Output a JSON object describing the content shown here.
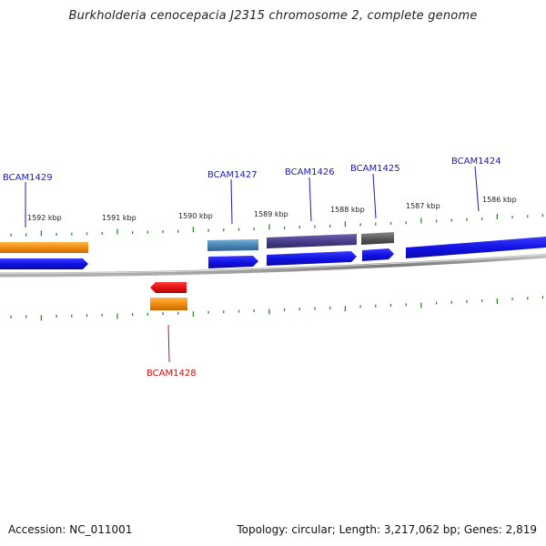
{
  "title": "Burkholderia cenocepacia J2315 chromosome 2, complete genome",
  "footer": {
    "accession": "Accession: NC_011001",
    "summary": "Topology: circular; Length: 3,217,062 bp; Genes: 2,819"
  },
  "scale_labels": [
    "1592 kbp",
    "1591 kbp",
    "1590 kbp",
    "1589 kbp",
    "1588 kbp",
    "1587 kbp",
    "1586 kbp"
  ],
  "gene_labels": {
    "bcam1429": "BCAM1429",
    "bcam1427": "BCAM1427",
    "bcam1426": "BCAM1426",
    "bcam1425": "BCAM1425",
    "bcam1424": "BCAM1424",
    "bcam1428": "BCAM1428"
  },
  "colors": {
    "forward_gene": "#1010e0",
    "reverse_gene": "#e01010",
    "label_forward": "#1a1ab8",
    "label_reverse": "#cc1111",
    "tick": "#2a8a2a",
    "backbone": "#8a8a8a",
    "cog_orange": "#f08c10",
    "cog_steelblue": "#4a86b8",
    "cog_purple": "#4a3f8c",
    "cog_gray": "#5a5a5a"
  }
}
